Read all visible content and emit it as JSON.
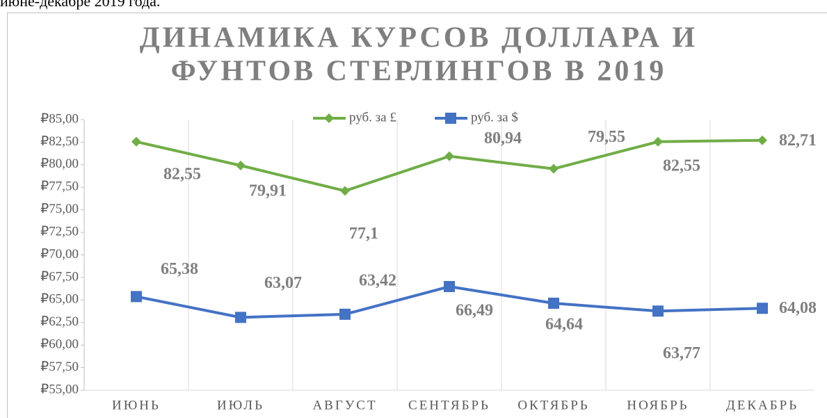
{
  "caption": "июне-декабре 2019 года.",
  "chart_data": {
    "type": "line",
    "title": [
      "ДИНАМИКА КУРСОВ ДОЛЛАРА И",
      "ФУНТОВ СТЕРЛИНГОВ В 2019"
    ],
    "categories": [
      "ИЮНЬ",
      "ИЮЛЬ",
      "АВГУСТ",
      "СЕНТЯБРЬ",
      "ОКТЯБРЬ",
      "НОЯБРЬ",
      "ДЕКАБРЬ"
    ],
    "series": [
      {
        "name": "руб. за £",
        "color": "#70ad47",
        "marker": "diamond",
        "values": [
          82.55,
          79.91,
          77.1,
          80.94,
          79.55,
          82.55,
          82.71
        ],
        "value_labels": [
          "82,55",
          "79,91",
          "77,1",
          "80,94",
          "79,55",
          "82,55",
          "82,71"
        ]
      },
      {
        "name": "руб. за $",
        "color": "#4472c4",
        "marker": "square",
        "values": [
          65.38,
          63.07,
          63.42,
          66.49,
          64.64,
          63.77,
          64.08
        ],
        "value_labels": [
          "65,38",
          "63,07",
          "63,42",
          "66,49",
          "64,64",
          "63,77",
          "64,08"
        ]
      }
    ],
    "ylim": [
      55,
      85
    ],
    "yticks": [
      {
        "value": 55,
        "label": "₽55,00"
      },
      {
        "value": 57.5,
        "label": "₽57,50"
      },
      {
        "value": 60,
        "label": "₽60,00"
      },
      {
        "value": 62.5,
        "label": "₽62,50"
      },
      {
        "value": 65,
        "label": "₽65,00"
      },
      {
        "value": 67.5,
        "label": "₽67,50"
      },
      {
        "value": 70,
        "label": "₽70,00"
      },
      {
        "value": 72.5,
        "label": "₽72,50"
      },
      {
        "value": 75,
        "label": "₽75,00"
      },
      {
        "value": 77.5,
        "label": "₽77,50"
      },
      {
        "value": 80,
        "label": "₽80,00"
      },
      {
        "value": 82.5,
        "label": "₽82,50"
      },
      {
        "value": 85,
        "label": "₽85,00"
      }
    ],
    "legend": "top",
    "grid": "x"
  }
}
